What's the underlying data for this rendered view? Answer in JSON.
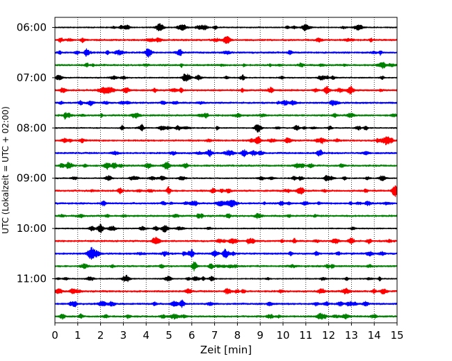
{
  "chart_data": {
    "type": "line",
    "title": "",
    "xlabel": "Zeit  [min]",
    "ylabel": "UTC (Lokalzeit = UTC + 02:00)",
    "xlim": [
      0,
      15
    ],
    "x_ticks": [
      0,
      1,
      2,
      3,
      4,
      5,
      6,
      7,
      8,
      9,
      10,
      11,
      12,
      13,
      14,
      15
    ],
    "y_tick_labels": [
      "06:00",
      "07:00",
      "08:00",
      "09:00",
      "10:00",
      "11:00"
    ],
    "rows_per_hour": 4,
    "row_minutes": 15,
    "first_row": "06:00",
    "row_count": 24,
    "row_colors": [
      "#000000",
      "#ff0000",
      "#0000ff",
      "#008000"
    ],
    "x_grid": "dotted vertical at each minute",
    "events": [
      {
        "row": 0,
        "minute": 10.9,
        "amp": 0.25
      },
      {
        "row": 0,
        "minute": 13.4,
        "amp": 0.3
      },
      {
        "row": 2,
        "minute": 4.1,
        "amp": 0.9
      },
      {
        "row": 4,
        "minute": 5.7,
        "amp": 0.6
      },
      {
        "row": 8,
        "minute": 10.6,
        "amp": 0.45
      },
      {
        "row": 10,
        "minute": 8.3,
        "amp": 0.55
      },
      {
        "row": 10,
        "minute": 11.6,
        "amp": 0.55
      },
      {
        "row": 11,
        "minute": 4.9,
        "amp": 0.7
      },
      {
        "row": 13,
        "minute": 10.7,
        "amp": 0.45
      },
      {
        "row": 13,
        "minute": 14.9,
        "amp": 1.1
      },
      {
        "row": 16,
        "minute": 2.0,
        "amp": 0.7
      },
      {
        "row": 17,
        "minute": 13.0,
        "amp": 0.5
      },
      {
        "row": 18,
        "minute": 1.6,
        "amp": 0.75
      },
      {
        "row": 22,
        "minute": 5.6,
        "amp": 0.3
      }
    ]
  }
}
